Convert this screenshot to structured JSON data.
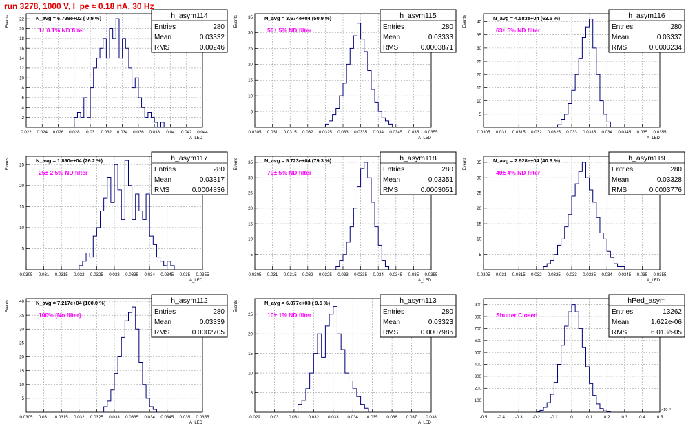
{
  "canvas_title": "run 3278,  1000 V, I_pe ≈ 0.18 nA,  30 Hz",
  "colors": {
    "title": "#e00000",
    "histogram": "#00007a",
    "annotation": "#ff00ff",
    "grid": "#9a9a9a"
  },
  "chart_data": [
    {
      "type": "bar",
      "name": "h_asym114",
      "stats": {
        "entries_label": "Entries",
        "entries": "280",
        "mean_label": "Mean",
        "mean": "0.03332",
        "rms_label": "RMS",
        "rms": "0.00246"
      },
      "navg": "N_avg = 6.798e+02 ( 0.9 %)",
      "filter": "1± 0.1% ND filter",
      "xlabel": "A_LED",
      "ylabel": "Events",
      "xlim": [
        0.022,
        0.044
      ],
      "ylim": [
        0,
        23
      ],
      "xticks": [
        "0.022",
        "0.024",
        "0.026",
        "0.028",
        "0.03",
        "0.032",
        "0.034",
        "0.036",
        "0.038",
        "0.04",
        "0.042",
        "0.044"
      ],
      "yticks": [
        2,
        4,
        6,
        8,
        10,
        12,
        14,
        16,
        18,
        20,
        22
      ],
      "x": [
        0.028,
        0.0284,
        0.0288,
        0.0292,
        0.0296,
        0.03,
        0.0304,
        0.0308,
        0.0312,
        0.0316,
        0.032,
        0.0324,
        0.0328,
        0.0332,
        0.0336,
        0.034,
        0.0344,
        0.0348,
        0.0352,
        0.0356,
        0.036,
        0.0364,
        0.0368,
        0.0372,
        0.0376,
        0.038,
        0.0384,
        0.0388
      ],
      "values": [
        2,
        3,
        2,
        6,
        2,
        8,
        12,
        14,
        16,
        18,
        14,
        20,
        18,
        22,
        14,
        18,
        16,
        12,
        8,
        10,
        6,
        4,
        2,
        3,
        2,
        1,
        0,
        1
      ]
    },
    {
      "type": "bar",
      "name": "h_asym115",
      "stats": {
        "entries_label": "Entries",
        "entries": "280",
        "mean_label": "Mean",
        "mean": "0.03333",
        "rms_label": "RMS",
        "rms": "0.0003871"
      },
      "navg": "N_avg = 3.674e+04 (50.9 %)",
      "filter": "50± 5% ND filter",
      "xlabel": "A_LED",
      "ylabel": "Events",
      "xlim": [
        0.0305,
        0.0355
      ],
      "ylim": [
        0,
        36
      ],
      "xticks": [
        "0.0305",
        "0.031",
        "0.0315",
        "0.032",
        "0.0325",
        "0.033",
        "0.0335",
        "0.034",
        "0.0345",
        "0.035",
        "0.0355"
      ],
      "yticks": [
        5,
        10,
        15,
        20,
        25,
        30,
        35
      ],
      "x": [
        0.0325,
        0.0326,
        0.0327,
        0.0328,
        0.0329,
        0.033,
        0.0331,
        0.0332,
        0.0333,
        0.0334,
        0.0335,
        0.0336,
        0.0337,
        0.0338,
        0.0339,
        0.034,
        0.0341,
        0.0342,
        0.0343
      ],
      "values": [
        1,
        2,
        4,
        6,
        10,
        14,
        20,
        25,
        29,
        33,
        28,
        24,
        18,
        12,
        8,
        5,
        3,
        2,
        1
      ]
    },
    {
      "type": "bar",
      "name": "h_asym116",
      "stats": {
        "entries_label": "Entries",
        "entries": "280",
        "mean_label": "Mean",
        "mean": "0.03337",
        "rms_label": "RMS",
        "rms": "0.0003234"
      },
      "navg": "N_avg = 4.583e+04 (63.5 %)",
      "filter": "63± 5% ND filter",
      "xlabel": "A_LED",
      "ylabel": "Events",
      "xlim": [
        0.0305,
        0.0355
      ],
      "ylim": [
        0,
        43
      ],
      "xticks": [
        "0.0305",
        "0.031",
        "0.0315",
        "0.032",
        "0.0325",
        "0.033",
        "0.0335",
        "0.034",
        "0.0345",
        "0.035",
        "0.0355"
      ],
      "yticks": [
        5,
        10,
        15,
        20,
        25,
        30,
        35,
        40
      ],
      "x": [
        0.0326,
        0.0327,
        0.0328,
        0.0329,
        0.033,
        0.0331,
        0.0332,
        0.0333,
        0.0334,
        0.0335,
        0.0336,
        0.0337,
        0.0338,
        0.0339,
        0.034
      ],
      "values": [
        1,
        3,
        5,
        9,
        14,
        20,
        26,
        34,
        38,
        41,
        30,
        20,
        10,
        5,
        2
      ]
    },
    {
      "type": "bar",
      "name": "h_asym117",
      "stats": {
        "entries_label": "Entries",
        "entries": "280",
        "mean_label": "Mean",
        "mean": "0.03317",
        "rms_label": "RMS",
        "rms": "0.0004836"
      },
      "navg": "N_avg = 1.890e+04 (26.2 %)",
      "filter": "25± 2.5% ND filter",
      "xlabel": "A_LED",
      "ylabel": "Events",
      "xlim": [
        0.0305,
        0.0355
      ],
      "ylim": [
        0,
        27
      ],
      "xticks": [
        "0.0305",
        "0.031",
        "0.0315",
        "0.032",
        "0.0325",
        "0.033",
        "0.0335",
        "0.034",
        "0.0345",
        "0.035",
        "0.0355"
      ],
      "yticks": [
        5,
        10,
        15,
        20,
        25
      ],
      "x": [
        0.032,
        0.0321,
        0.0322,
        0.0323,
        0.0324,
        0.0325,
        0.0326,
        0.0327,
        0.0328,
        0.0329,
        0.033,
        0.0331,
        0.0332,
        0.0333,
        0.0334,
        0.0335,
        0.0336,
        0.0337,
        0.0338,
        0.0339,
        0.034,
        0.0341,
        0.0342,
        0.0343,
        0.0344,
        0.0345,
        0.0346
      ],
      "values": [
        1,
        2,
        4,
        3,
        8,
        10,
        14,
        17,
        22,
        16,
        25,
        19,
        12,
        26,
        20,
        12,
        18,
        14,
        12,
        18,
        8,
        6,
        3,
        2,
        1,
        2,
        1
      ]
    },
    {
      "type": "bar",
      "name": "h_asym118",
      "stats": {
        "entries_label": "Entries",
        "entries": "280",
        "mean_label": "Mean",
        "mean": "0.03351",
        "rms_label": "RMS",
        "rms": "0.0003051"
      },
      "navg": "N_avg = 5.723e+04 (79.3 %)",
      "filter": "79± 5% ND filter",
      "xlabel": "A_LED",
      "ylabel": "Events",
      "xlim": [
        0.0305,
        0.0355
      ],
      "ylim": [
        0,
        37
      ],
      "xticks": [
        "0.0305",
        "0.031",
        "0.0315",
        "0.032",
        "0.0325",
        "0.033",
        "0.0335",
        "0.034",
        "0.0345",
        "0.035",
        "0.0355"
      ],
      "yticks": [
        5,
        10,
        15,
        20,
        25,
        30,
        35
      ],
      "x": [
        0.0328,
        0.0329,
        0.033,
        0.0331,
        0.0332,
        0.0333,
        0.0334,
        0.0335,
        0.0336,
        0.0337,
        0.0338,
        0.0339,
        0.034,
        0.0341,
        0.0342
      ],
      "values": [
        1,
        3,
        5,
        9,
        14,
        20,
        27,
        33,
        35,
        30,
        22,
        14,
        8,
        3,
        1
      ]
    },
    {
      "type": "bar",
      "name": "h_asym119",
      "stats": {
        "entries_label": "Entries",
        "entries": "280",
        "mean_label": "Mean",
        "mean": "0.03328",
        "rms_label": "RMS",
        "rms": "0.0003776"
      },
      "navg": "N_avg = 2.928e+04 (40.6 %)",
      "filter": "40± 4% ND filter",
      "xlabel": "A_LED",
      "ylabel": "Events",
      "xlim": [
        0.0305,
        0.0355
      ],
      "ylim": [
        0,
        37
      ],
      "xticks": [
        "0.0305",
        "0.031",
        "0.0315",
        "0.032",
        "0.0325",
        "0.033",
        "0.0335",
        "0.034",
        "0.0345",
        "0.035",
        "0.0355"
      ],
      "yticks": [
        5,
        10,
        15,
        20,
        25,
        30,
        35
      ],
      "x": [
        0.0322,
        0.0323,
        0.0324,
        0.0325,
        0.0326,
        0.0327,
        0.0328,
        0.0329,
        0.033,
        0.0331,
        0.0332,
        0.0333,
        0.0334,
        0.0335,
        0.0336,
        0.0337,
        0.0338,
        0.0339,
        0.034,
        0.0341,
        0.0342,
        0.0343,
        0.0344
      ],
      "values": [
        1,
        2,
        3,
        5,
        8,
        10,
        14,
        18,
        24,
        28,
        32,
        35,
        30,
        26,
        22,
        17,
        12,
        10,
        6,
        4,
        2,
        1,
        1
      ]
    },
    {
      "type": "bar",
      "name": "h_asym112",
      "stats": {
        "entries_label": "Entries",
        "entries": "280",
        "mean_label": "Mean",
        "mean": "0.03339",
        "rms_label": "RMS",
        "rms": "0.0002705"
      },
      "navg": "N_avg = 7.217e+04 (100.0 %)",
      "filter": "100% (No filter)",
      "xlabel": "A_LED",
      "ylabel": "Events",
      "xlim": [
        0.0305,
        0.0355
      ],
      "ylim": [
        0,
        41
      ],
      "xticks": [
        "0.0305",
        "0.031",
        "0.0315",
        "0.032",
        "0.0325",
        "0.033",
        "0.0335",
        "0.034",
        "0.0345",
        "0.035",
        "0.0355"
      ],
      "yticks": [
        5,
        10,
        15,
        20,
        25,
        30,
        35,
        40
      ],
      "x": [
        0.0327,
        0.0328,
        0.0329,
        0.033,
        0.0331,
        0.0332,
        0.0333,
        0.0334,
        0.0335,
        0.0336,
        0.0337,
        0.0338,
        0.0339,
        0.034,
        0.0341
      ],
      "values": [
        2,
        4,
        8,
        14,
        20,
        27,
        33,
        36,
        38,
        30,
        18,
        10,
        5,
        2,
        1
      ]
    },
    {
      "type": "bar",
      "name": "h_asym113",
      "stats": {
        "entries_label": "Entries",
        "entries": "280",
        "mean_label": "Mean",
        "mean": "0.03323",
        "rms_label": "RMS",
        "rms": "0.0007985"
      },
      "navg": "N_avg = 6.877e+03 ( 9.5 %)",
      "filter": "10± 1% ND filter",
      "xlabel": "A_LED",
      "ylabel": "Events",
      "xlim": [
        0.029,
        0.038
      ],
      "ylim": [
        0,
        29
      ],
      "xticks": [
        "0.029",
        "0.03",
        "0.031",
        "0.032",
        "0.033",
        "0.034",
        "0.035",
        "0.036",
        "0.037",
        "0.038"
      ],
      "yticks": [
        5,
        10,
        15,
        20,
        25
      ],
      "x": [
        0.0312,
        0.0314,
        0.0316,
        0.0318,
        0.032,
        0.0322,
        0.0324,
        0.0326,
        0.0328,
        0.033,
        0.0332,
        0.0334,
        0.0336,
        0.0338,
        0.034,
        0.0342,
        0.0344,
        0.0346
      ],
      "values": [
        2,
        3,
        6,
        10,
        15,
        20,
        14,
        22,
        25,
        27,
        20,
        16,
        10,
        8,
        6,
        4,
        2,
        1
      ]
    },
    {
      "type": "bar",
      "name": "hPed_asym",
      "stats": {
        "entries_label": "Entries",
        "entries": "13262",
        "mean_label": "Mean",
        "mean": "1.622e-06",
        "rms_label": "RMS",
        "rms": "6.013e-05"
      },
      "navg": "",
      "filter": "Shutter Closed",
      "xlabel": "",
      "ylabel": "",
      "exponent_label": "×10⁻³",
      "xlim": [
        -0.5,
        0.5
      ],
      "ylim": [
        0,
        950
      ],
      "xticks": [
        "-0.5",
        "-0.4",
        "-0.3",
        "-0.2",
        "-0.1",
        "0",
        "0.1",
        "0.2",
        "0.3",
        "0.4",
        "0.5"
      ],
      "yticks": [
        100,
        200,
        300,
        400,
        500,
        600,
        700,
        800,
        900
      ],
      "x": [
        -0.2,
        -0.18,
        -0.16,
        -0.14,
        -0.12,
        -0.1,
        -0.08,
        -0.06,
        -0.04,
        -0.02,
        0,
        0.02,
        0.04,
        0.06,
        0.08,
        0.1,
        0.12,
        0.14,
        0.16,
        0.18,
        0.2
      ],
      "values": [
        5,
        15,
        40,
        80,
        150,
        250,
        400,
        560,
        720,
        840,
        900,
        840,
        700,
        540,
        380,
        240,
        140,
        70,
        30,
        10,
        4
      ]
    }
  ]
}
